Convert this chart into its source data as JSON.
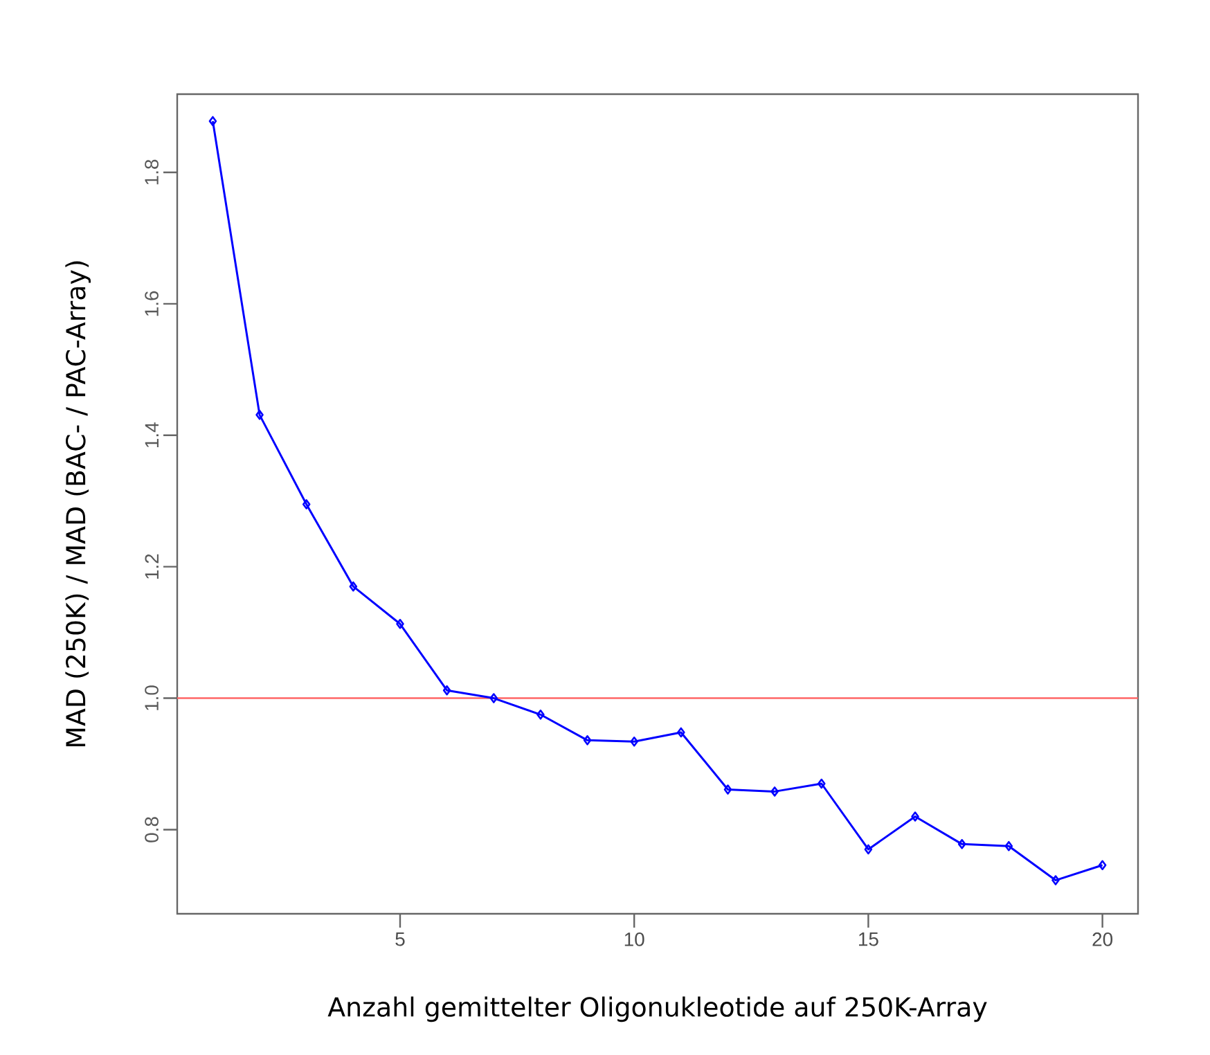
{
  "chart_data": {
    "type": "line",
    "xlabel": "Anzahl gemittelter Oligonukleotide auf 250K-Array",
    "ylabel": "MAD (250K) / MAD (BAC- / PAC-Array)",
    "x": [
      1,
      2,
      3,
      4,
      5,
      6,
      7,
      8,
      9,
      10,
      11,
      12,
      13,
      14,
      15,
      16,
      17,
      18,
      19,
      20
    ],
    "series": [
      {
        "color": "#0000ff",
        "values": [
          1.878,
          1.431,
          1.295,
          1.17,
          1.113,
          1.012,
          1.0,
          0.975,
          0.936,
          0.934,
          0.948,
          0.861,
          0.858,
          0.87,
          0.77,
          0.82,
          0.778,
          0.775,
          0.723,
          0.746
        ]
      }
    ],
    "marker": "diamond",
    "line_style": "solid",
    "xlim": [
      0.24,
      20.76
    ],
    "ylim": [
      0.672,
      1.919
    ],
    "xticks": [
      5,
      10,
      15,
      20
    ],
    "yticks": [
      0.8,
      {
        "value": 1.0,
        "label": "1.0"
      },
      1.2,
      1.4,
      1.6,
      1.8
    ],
    "ref_lines": [
      {
        "axis": "y",
        "value": 1.0,
        "color": "#ff6666"
      }
    ]
  }
}
